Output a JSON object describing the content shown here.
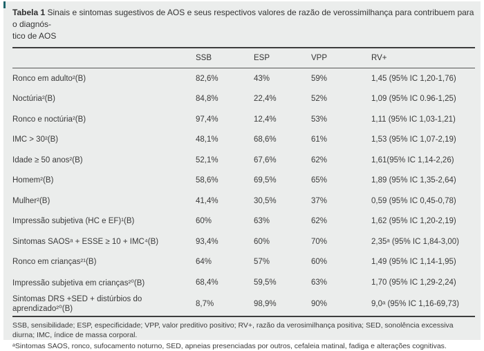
{
  "accent_color": "#1d646b",
  "table": {
    "title_label": "Tabela 1",
    "title_line1": " Sinais e sintomas sugestivos de AOS e seus respectivos valores de razão de verossimilhança para contribuem para o diagnós-",
    "title_line2": "tico de AOS",
    "columns": [
      "SSB",
      "ESP",
      "VPP",
      "RV+"
    ],
    "rows": [
      {
        "label": "Ronco em adulto²(B)",
        "ssb": "82,6%",
        "esp": "43%",
        "vpp": "59%",
        "rv": "1,45 (95% IC 1,20-1,76)"
      },
      {
        "label": "Noctúria²(B)",
        "ssb": "84,8%",
        "esp": "22,4%",
        "vpp": "52%",
        "rv": "1,09 (95% IC 0.96-1,25)"
      },
      {
        "label": "Ronco e noctúria²(B)",
        "ssb": "97,4%",
        "esp": "12,4%",
        "vpp": "53%",
        "rv": "1,11 (95% IC 1,03-1,21)"
      },
      {
        "label": "IMC > 30²(B)",
        "ssb": "48,1%",
        "esp": "68,6%",
        "vpp": "61%",
        "rv": "1,53 (95% IC 1,07-2,19)"
      },
      {
        "label": "Idade ≥ 50 anos²(B)",
        "ssb": "52,1%",
        "esp": "67,6%",
        "vpp": "62%",
        "rv": "1,61(95% IC 1,14-2,26)"
      },
      {
        "label": "Homem²(B)",
        "ssb": "58,6%",
        "esp": "69,5%",
        "vpp": "65%",
        "rv": "1,89 (95% IC 1,35-2,64)"
      },
      {
        "label": "Mulher²(B)",
        "ssb": "41,4%",
        "esp": "30,5%",
        "vpp": "37%",
        "rv": "0,59 (95% IC 0,45-0,78)"
      },
      {
        "label": "Impressão subjetiva (HC e EF)¹(B)",
        "ssb": "60%",
        "esp": "63%",
        "vpp": "62%",
        "rv": "1,62 (95% IC 1,20-2,19)"
      },
      {
        "label": "Sintomas SAOSᵃ + ESSE ≥ 10 + IMC⁴(B)",
        "ssb": "93,4%",
        "esp": "60%",
        "vpp": "70%",
        "rv": "2,35ᵃ (95% IC 1,84-3,00)"
      },
      {
        "label": "Ronco em crianças²¹(B)",
        "ssb": "64%",
        "esp": "57%",
        "vpp": "60%",
        "rv": "1,49 (95% IC 1,14-1,95)"
      },
      {
        "label": "Impressão subjetiva em crianças²⁰(B)",
        "ssb": "68,4%",
        "esp": "59,5%",
        "vpp": "63%",
        "rv": "1,70 (95% IC 1,29-2,24)"
      },
      {
        "label": "Sintomas DRS +SED + distúrbios do aprendizado²⁰(B)",
        "ssb": "8,7%",
        "esp": "98,9%",
        "vpp": "90%",
        "rv": "9,0ᵃ (95% IC 1,16-69,73)"
      }
    ],
    "footnote_abbrev": "SSB, sensibilidade; ESP, especificidade; VPP, valor preditivo positivo; RV+, razão da verosimilhança positiva; SED, sonolência excessiva diurna; IMC, índice de massa corporal.",
    "footnote_a": "ᵃSintomas SAOS, ronco, sufocamento noturno, SED, apneias presenciadas por outros, cefaleia matinal, fadiga e alterações cognitivas."
  }
}
